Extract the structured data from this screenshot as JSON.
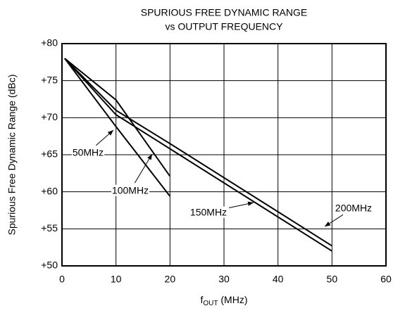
{
  "chart_data": {
    "type": "line",
    "title": [
      "SPURIOUS FREE DYNAMIC RANGE",
      "vs OUTPUT FREQUENCY"
    ],
    "xlabel": [
      "f",
      "OUT",
      " (MHz)"
    ],
    "ylabel": "Spurious Free Dynamic Range (dBc)",
    "xlim": [
      0,
      60
    ],
    "xticks": [
      0,
      10,
      20,
      30,
      40,
      50,
      60
    ],
    "ylim": [
      50,
      80
    ],
    "yticks": [
      {
        "value": 50,
        "label": "+50"
      },
      {
        "value": 55,
        "label": "+55"
      },
      {
        "value": 60,
        "label": "+60"
      },
      {
        "value": 65,
        "label": "+65"
      },
      {
        "value": 70,
        "label": "+70"
      },
      {
        "value": 75,
        "label": "+75"
      },
      {
        "value": 80,
        "label": "+80"
      }
    ],
    "grid": true,
    "series": [
      {
        "name": "50MHz",
        "color": "#000000",
        "x": [
          0.5,
          10,
          20
        ],
        "values": [
          78,
          68.8,
          59.4
        ]
      },
      {
        "name": "100MHz",
        "color": "#000000",
        "x": [
          0.5,
          10,
          20
        ],
        "values": [
          78,
          72.4,
          62.1
        ]
      },
      {
        "name": "150MHz",
        "color": "#000000",
        "x": [
          0.5,
          10,
          20,
          50
        ],
        "values": [
          78,
          70.4,
          65.8,
          52
        ]
      },
      {
        "name": "200MHz",
        "color": "#000000",
        "x": [
          0.5,
          10,
          20,
          50
        ],
        "values": [
          78,
          71,
          66.5,
          52.7
        ]
      }
    ]
  }
}
